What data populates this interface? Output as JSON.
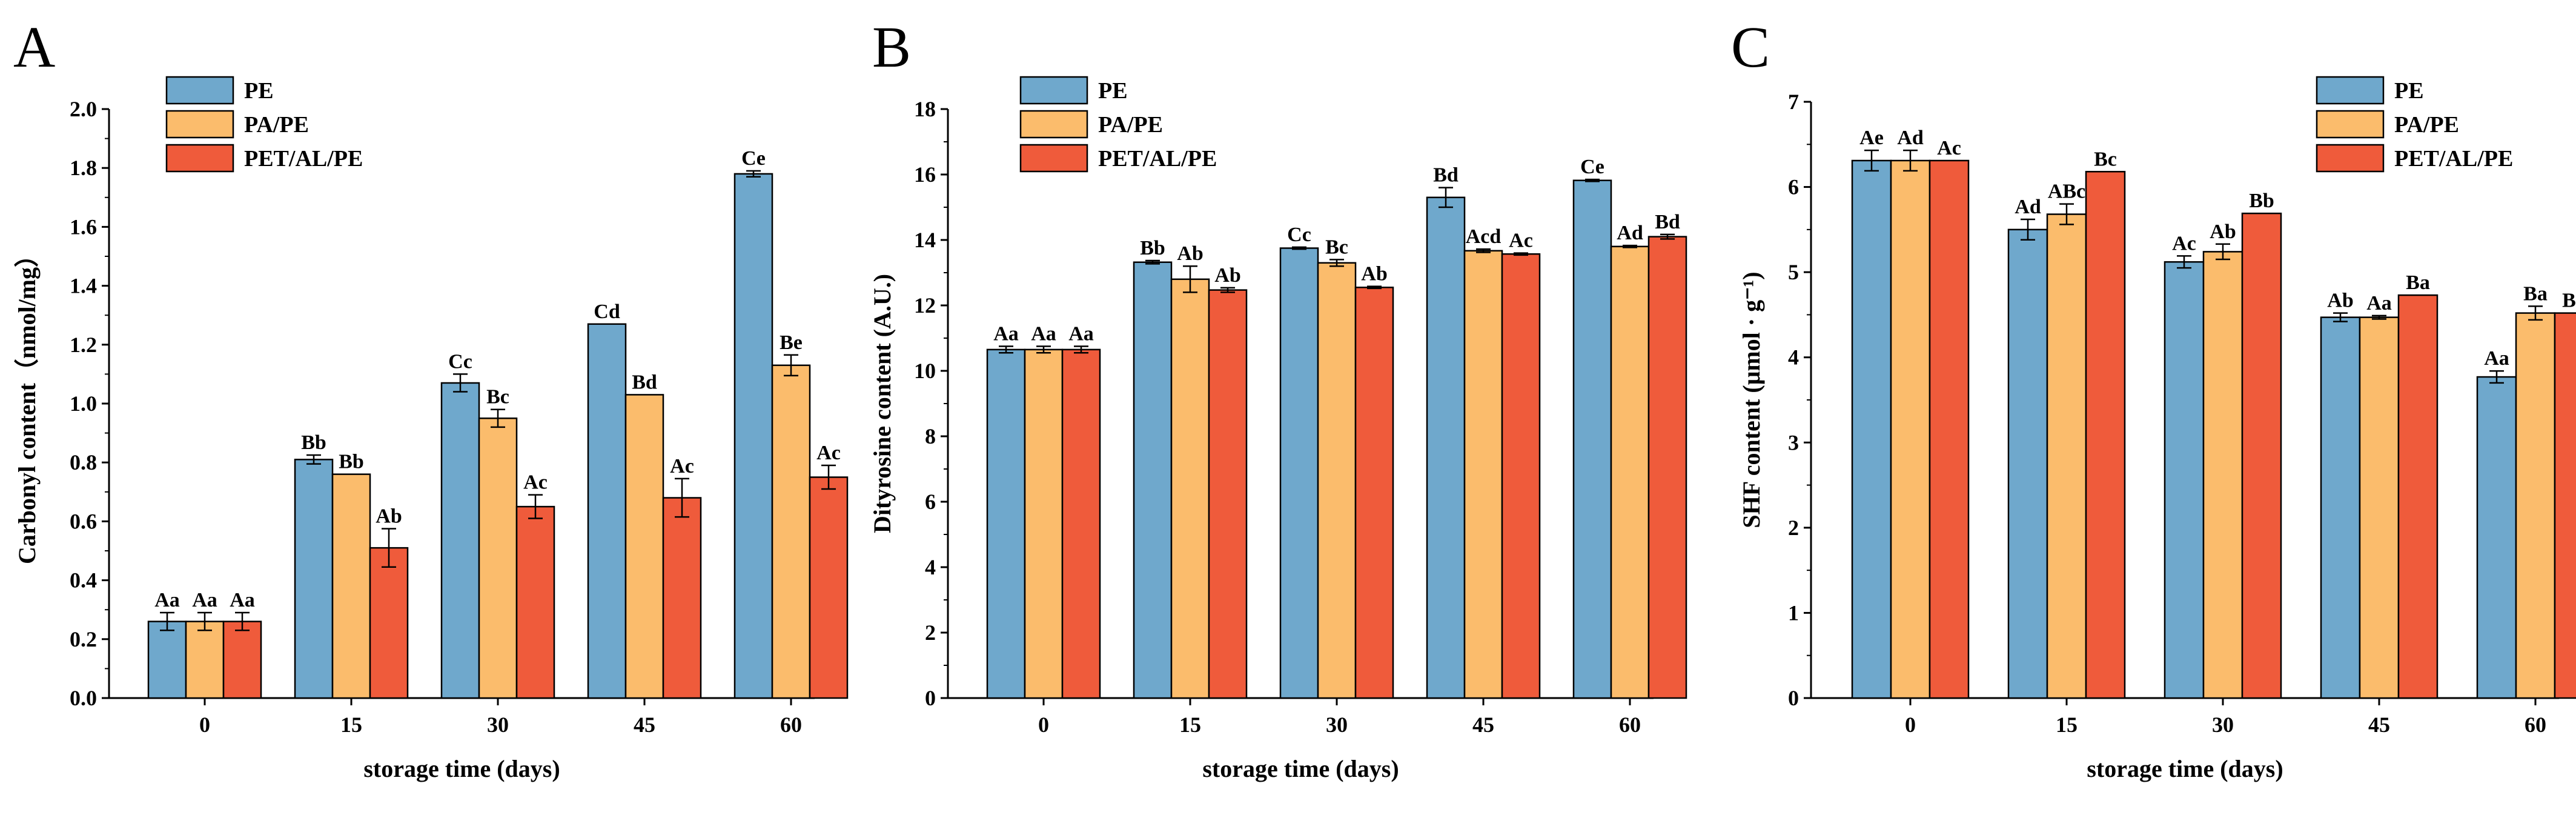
{
  "colors": {
    "PE": "#6fa8cc",
    "PA/PE": "#fbbc6c",
    "PET/AL/PE": "#ef5b3b",
    "axis": "#000000"
  },
  "chart_data": [
    {
      "type": "bar",
      "panel": "A",
      "xlabel": "storage time (days)",
      "ylabel": "Carbonyl content（nmol/mg）",
      "ylim": [
        0,
        2.0
      ],
      "yticks": [
        "0.0",
        "0.2",
        "0.4",
        "0.6",
        "0.8",
        "1.0",
        "1.2",
        "1.4",
        "1.6",
        "1.8",
        "2.0"
      ],
      "categories": [
        "0",
        "15",
        "30",
        "45",
        "60"
      ],
      "legend_position": "top-left",
      "grid": false,
      "series": [
        {
          "name": "PE",
          "values": [
            0.26,
            0.81,
            1.07,
            1.27,
            1.78
          ],
          "errors": [
            0.03,
            0.015,
            0.03,
            0.0,
            0.01
          ],
          "labels": [
            "Aa",
            "Bb",
            "Cc",
            "Cd",
            "Ce"
          ]
        },
        {
          "name": "PA/PE",
          "values": [
            0.26,
            0.76,
            0.95,
            1.03,
            1.13
          ],
          "errors": [
            0.03,
            0.0,
            0.03,
            0.0,
            0.035
          ],
          "labels": [
            "Aa",
            "Bb",
            "Bc",
            "Bd",
            "Be"
          ]
        },
        {
          "name": "PET/AL/PE",
          "values": [
            0.26,
            0.51,
            0.65,
            0.68,
            0.75
          ],
          "errors": [
            0.03,
            0.065,
            0.04,
            0.065,
            0.04
          ],
          "labels": [
            "Aa",
            "Ab",
            "Ac",
            "Ac",
            "Ac"
          ]
        }
      ]
    },
    {
      "type": "bar",
      "panel": "B",
      "xlabel": "storage time (days)",
      "ylabel": "Dityrosine content (A.U.)",
      "ylim": [
        0,
        18
      ],
      "yticks": [
        "0",
        "2",
        "4",
        "6",
        "8",
        "10",
        "12",
        "14",
        "16",
        "18"
      ],
      "categories": [
        "0",
        "15",
        "30",
        "45",
        "60"
      ],
      "legend_position": "top-left",
      "grid": false,
      "series": [
        {
          "name": "PE",
          "values": [
            10.65,
            13.32,
            13.75,
            15.3,
            15.82
          ],
          "errors": [
            0.1,
            0.05,
            0.03,
            0.3,
            0.03
          ],
          "labels": [
            "Aa",
            "Bb",
            "Cc",
            "Bd",
            "Ce"
          ]
        },
        {
          "name": "PA/PE",
          "values": [
            10.65,
            12.8,
            13.3,
            13.67,
            13.8
          ],
          "errors": [
            0.1,
            0.4,
            0.1,
            0.05,
            0.03
          ],
          "labels": [
            "Aa",
            "Ab",
            "Bc",
            "Acd",
            "Ad"
          ]
        },
        {
          "name": "PET/AL/PE",
          "values": [
            10.65,
            12.47,
            12.55,
            13.57,
            14.1
          ],
          "errors": [
            0.1,
            0.07,
            0.03,
            0.03,
            0.07
          ],
          "labels": [
            "Aa",
            "Ab",
            "Ab",
            "Ac",
            "Bd"
          ]
        }
      ]
    },
    {
      "type": "bar",
      "panel": "C",
      "xlabel": "storage time (days)",
      "ylabel": "SHF content (μmol · g⁻¹)",
      "ylim": [
        0,
        7
      ],
      "yticks": [
        "0",
        "1",
        "2",
        "3",
        "4",
        "5",
        "6",
        "7"
      ],
      "categories": [
        "0",
        "15",
        "30",
        "45",
        "60"
      ],
      "legend_position": "top-right",
      "grid": false,
      "series": [
        {
          "name": "PE",
          "values": [
            6.31,
            5.5,
            5.12,
            4.47,
            3.77
          ],
          "errors": [
            0.12,
            0.12,
            0.07,
            0.05,
            0.07
          ],
          "labels": [
            "Ae",
            "Ad",
            "Ac",
            "Ab",
            "Aa"
          ]
        },
        {
          "name": "PA/PE",
          "values": [
            6.31,
            5.68,
            5.24,
            4.47,
            4.52
          ],
          "errors": [
            0.12,
            0.12,
            0.09,
            0.02,
            0.08
          ],
          "labels": [
            "Ad",
            "ABc",
            "Ab",
            "Aa",
            "Ba"
          ]
        },
        {
          "name": "PET/AL/PE",
          "values": [
            6.31,
            6.18,
            5.69,
            4.73,
            4.52
          ],
          "errors": [
            0.0,
            0.0,
            0.0,
            0.0,
            0.0
          ],
          "labels": [
            "Ac",
            "Bc",
            "Bb",
            "Ba",
            "Ba"
          ]
        }
      ]
    }
  ]
}
